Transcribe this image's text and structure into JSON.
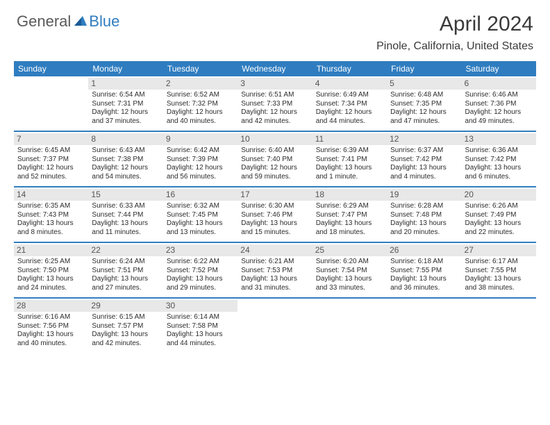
{
  "logo": {
    "text1": "General",
    "text2": "Blue"
  },
  "title": "April 2024",
  "location": "Pinole, California, United States",
  "header_bg": "#2f7dc0",
  "text_color": "#2b2b2b",
  "dayHeaders": [
    "Sunday",
    "Monday",
    "Tuesday",
    "Wednesday",
    "Thursday",
    "Friday",
    "Saturday"
  ],
  "weeks": [
    [
      null,
      {
        "n": "1",
        "sr": "Sunrise: 6:54 AM",
        "ss": "Sunset: 7:31 PM",
        "dl1": "Daylight: 12 hours",
        "dl2": "and 37 minutes."
      },
      {
        "n": "2",
        "sr": "Sunrise: 6:52 AM",
        "ss": "Sunset: 7:32 PM",
        "dl1": "Daylight: 12 hours",
        "dl2": "and 40 minutes."
      },
      {
        "n": "3",
        "sr": "Sunrise: 6:51 AM",
        "ss": "Sunset: 7:33 PM",
        "dl1": "Daylight: 12 hours",
        "dl2": "and 42 minutes."
      },
      {
        "n": "4",
        "sr": "Sunrise: 6:49 AM",
        "ss": "Sunset: 7:34 PM",
        "dl1": "Daylight: 12 hours",
        "dl2": "and 44 minutes."
      },
      {
        "n": "5",
        "sr": "Sunrise: 6:48 AM",
        "ss": "Sunset: 7:35 PM",
        "dl1": "Daylight: 12 hours",
        "dl2": "and 47 minutes."
      },
      {
        "n": "6",
        "sr": "Sunrise: 6:46 AM",
        "ss": "Sunset: 7:36 PM",
        "dl1": "Daylight: 12 hours",
        "dl2": "and 49 minutes."
      }
    ],
    [
      {
        "n": "7",
        "sr": "Sunrise: 6:45 AM",
        "ss": "Sunset: 7:37 PM",
        "dl1": "Daylight: 12 hours",
        "dl2": "and 52 minutes."
      },
      {
        "n": "8",
        "sr": "Sunrise: 6:43 AM",
        "ss": "Sunset: 7:38 PM",
        "dl1": "Daylight: 12 hours",
        "dl2": "and 54 minutes."
      },
      {
        "n": "9",
        "sr": "Sunrise: 6:42 AM",
        "ss": "Sunset: 7:39 PM",
        "dl1": "Daylight: 12 hours",
        "dl2": "and 56 minutes."
      },
      {
        "n": "10",
        "sr": "Sunrise: 6:40 AM",
        "ss": "Sunset: 7:40 PM",
        "dl1": "Daylight: 12 hours",
        "dl2": "and 59 minutes."
      },
      {
        "n": "11",
        "sr": "Sunrise: 6:39 AM",
        "ss": "Sunset: 7:41 PM",
        "dl1": "Daylight: 13 hours",
        "dl2": "and 1 minute."
      },
      {
        "n": "12",
        "sr": "Sunrise: 6:37 AM",
        "ss": "Sunset: 7:42 PM",
        "dl1": "Daylight: 13 hours",
        "dl2": "and 4 minutes."
      },
      {
        "n": "13",
        "sr": "Sunrise: 6:36 AM",
        "ss": "Sunset: 7:42 PM",
        "dl1": "Daylight: 13 hours",
        "dl2": "and 6 minutes."
      }
    ],
    [
      {
        "n": "14",
        "sr": "Sunrise: 6:35 AM",
        "ss": "Sunset: 7:43 PM",
        "dl1": "Daylight: 13 hours",
        "dl2": "and 8 minutes."
      },
      {
        "n": "15",
        "sr": "Sunrise: 6:33 AM",
        "ss": "Sunset: 7:44 PM",
        "dl1": "Daylight: 13 hours",
        "dl2": "and 11 minutes."
      },
      {
        "n": "16",
        "sr": "Sunrise: 6:32 AM",
        "ss": "Sunset: 7:45 PM",
        "dl1": "Daylight: 13 hours",
        "dl2": "and 13 minutes."
      },
      {
        "n": "17",
        "sr": "Sunrise: 6:30 AM",
        "ss": "Sunset: 7:46 PM",
        "dl1": "Daylight: 13 hours",
        "dl2": "and 15 minutes."
      },
      {
        "n": "18",
        "sr": "Sunrise: 6:29 AM",
        "ss": "Sunset: 7:47 PM",
        "dl1": "Daylight: 13 hours",
        "dl2": "and 18 minutes."
      },
      {
        "n": "19",
        "sr": "Sunrise: 6:28 AM",
        "ss": "Sunset: 7:48 PM",
        "dl1": "Daylight: 13 hours",
        "dl2": "and 20 minutes."
      },
      {
        "n": "20",
        "sr": "Sunrise: 6:26 AM",
        "ss": "Sunset: 7:49 PM",
        "dl1": "Daylight: 13 hours",
        "dl2": "and 22 minutes."
      }
    ],
    [
      {
        "n": "21",
        "sr": "Sunrise: 6:25 AM",
        "ss": "Sunset: 7:50 PM",
        "dl1": "Daylight: 13 hours",
        "dl2": "and 24 minutes."
      },
      {
        "n": "22",
        "sr": "Sunrise: 6:24 AM",
        "ss": "Sunset: 7:51 PM",
        "dl1": "Daylight: 13 hours",
        "dl2": "and 27 minutes."
      },
      {
        "n": "23",
        "sr": "Sunrise: 6:22 AM",
        "ss": "Sunset: 7:52 PM",
        "dl1": "Daylight: 13 hours",
        "dl2": "and 29 minutes."
      },
      {
        "n": "24",
        "sr": "Sunrise: 6:21 AM",
        "ss": "Sunset: 7:53 PM",
        "dl1": "Daylight: 13 hours",
        "dl2": "and 31 minutes."
      },
      {
        "n": "25",
        "sr": "Sunrise: 6:20 AM",
        "ss": "Sunset: 7:54 PM",
        "dl1": "Daylight: 13 hours",
        "dl2": "and 33 minutes."
      },
      {
        "n": "26",
        "sr": "Sunrise: 6:18 AM",
        "ss": "Sunset: 7:55 PM",
        "dl1": "Daylight: 13 hours",
        "dl2": "and 36 minutes."
      },
      {
        "n": "27",
        "sr": "Sunrise: 6:17 AM",
        "ss": "Sunset: 7:55 PM",
        "dl1": "Daylight: 13 hours",
        "dl2": "and 38 minutes."
      }
    ],
    [
      {
        "n": "28",
        "sr": "Sunrise: 6:16 AM",
        "ss": "Sunset: 7:56 PM",
        "dl1": "Daylight: 13 hours",
        "dl2": "and 40 minutes."
      },
      {
        "n": "29",
        "sr": "Sunrise: 6:15 AM",
        "ss": "Sunset: 7:57 PM",
        "dl1": "Daylight: 13 hours",
        "dl2": "and 42 minutes."
      },
      {
        "n": "30",
        "sr": "Sunrise: 6:14 AM",
        "ss": "Sunset: 7:58 PM",
        "dl1": "Daylight: 13 hours",
        "dl2": "and 44 minutes."
      },
      null,
      null,
      null,
      null
    ]
  ]
}
